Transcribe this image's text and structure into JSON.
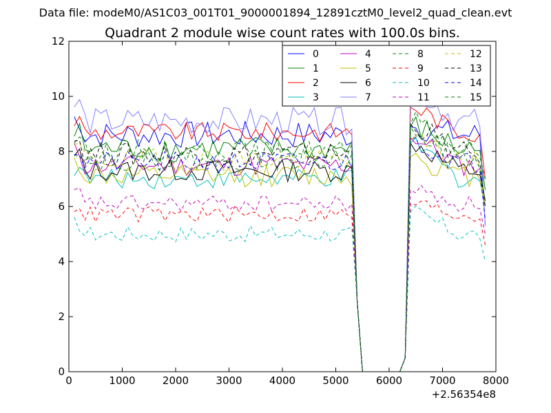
{
  "chart_data": {
    "type": "line",
    "suptitle": "Data file: modeM0/AS1C03_001T01_9000001894_12891cztM0_level2_quad_clean.evt",
    "title": "Quadrant 2 module wise count rates with 100.0s bins.",
    "xlabel": "",
    "ylabel": "",
    "x_offset_label": "+2.56354e8",
    "xlim": [
      0,
      8000
    ],
    "ylim": [
      0,
      12
    ],
    "x_ticks": [
      0,
      1000,
      2000,
      3000,
      4000,
      5000,
      6000,
      7000,
      8000
    ],
    "y_ticks": [
      0,
      2,
      4,
      6,
      8,
      10,
      12
    ],
    "legend_position": "top-right",
    "legend_columns": 4,
    "gap": {
      "start": 5500,
      "end": 6200,
      "note": "count rate drops to 0 between ~5500 and ~6200"
    },
    "series": [
      {
        "name": "0",
        "color": "#0000ff",
        "style": "solid",
        "base": 8.6,
        "amp": 0.5,
        "drop": 8.9,
        "end": 5.3
      },
      {
        "name": "1",
        "color": "#008000",
        "style": "solid",
        "base": 8.1,
        "amp": 0.45,
        "drop": 8.9,
        "end": 6.6
      },
      {
        "name": "2",
        "color": "#ff0000",
        "style": "solid",
        "base": 8.7,
        "amp": 0.35,
        "drop": 9.6,
        "end": 7.0
      },
      {
        "name": "3",
        "color": "#00bfbf",
        "style": "solid",
        "base": 7.0,
        "amp": 0.35,
        "drop": 8.3,
        "end": 6.0
      },
      {
        "name": "4",
        "color": "#bf00bf",
        "style": "solid",
        "base": 7.5,
        "amp": 0.4,
        "drop": 8.5,
        "end": 6.2
      },
      {
        "name": "5",
        "color": "#bfbf00",
        "style": "solid",
        "base": 7.1,
        "amp": 0.4,
        "drop": 7.8,
        "end": 6.0
      },
      {
        "name": "6",
        "color": "#000000",
        "style": "solid",
        "base": 7.3,
        "amp": 0.4,
        "drop": 8.3,
        "end": 6.2
      },
      {
        "name": "7",
        "color": "#7f7fff",
        "style": "solid",
        "base": 9.1,
        "amp": 0.5,
        "drop": 10.3,
        "end": 5.3
      },
      {
        "name": "8",
        "color": "#008000",
        "style": "dashed",
        "base": 8.0,
        "amp": 0.45,
        "drop": 9.0,
        "end": 7.0
      },
      {
        "name": "9",
        "color": "#ff0000",
        "style": "dashed",
        "base": 5.7,
        "amp": 0.3,
        "drop": 6.1,
        "end": 4.6
      },
      {
        "name": "10",
        "color": "#00bfbf",
        "style": "dashed",
        "base": 5.0,
        "amp": 0.3,
        "drop": 5.8,
        "end": 4.0
      },
      {
        "name": "11",
        "color": "#bf00bf",
        "style": "dashed",
        "base": 6.1,
        "amp": 0.3,
        "drop": 6.6,
        "end": 5.0
      },
      {
        "name": "12",
        "color": "#bfbf00",
        "style": "dashed",
        "base": 7.7,
        "amp": 0.4,
        "drop": 8.4,
        "end": 6.0
      },
      {
        "name": "13",
        "color": "#000000",
        "style": "dashed",
        "base": 7.9,
        "amp": 0.45,
        "drop": 9.0,
        "end": 6.0
      },
      {
        "name": "14",
        "color": "#0000ff",
        "style": "dashed",
        "base": 7.6,
        "amp": 0.4,
        "drop": 8.4,
        "end": 5.5
      },
      {
        "name": "15",
        "color": "#008000",
        "style": "dashed",
        "base": 7.7,
        "amp": 0.4,
        "drop": 8.9,
        "end": 6.2
      }
    ]
  }
}
